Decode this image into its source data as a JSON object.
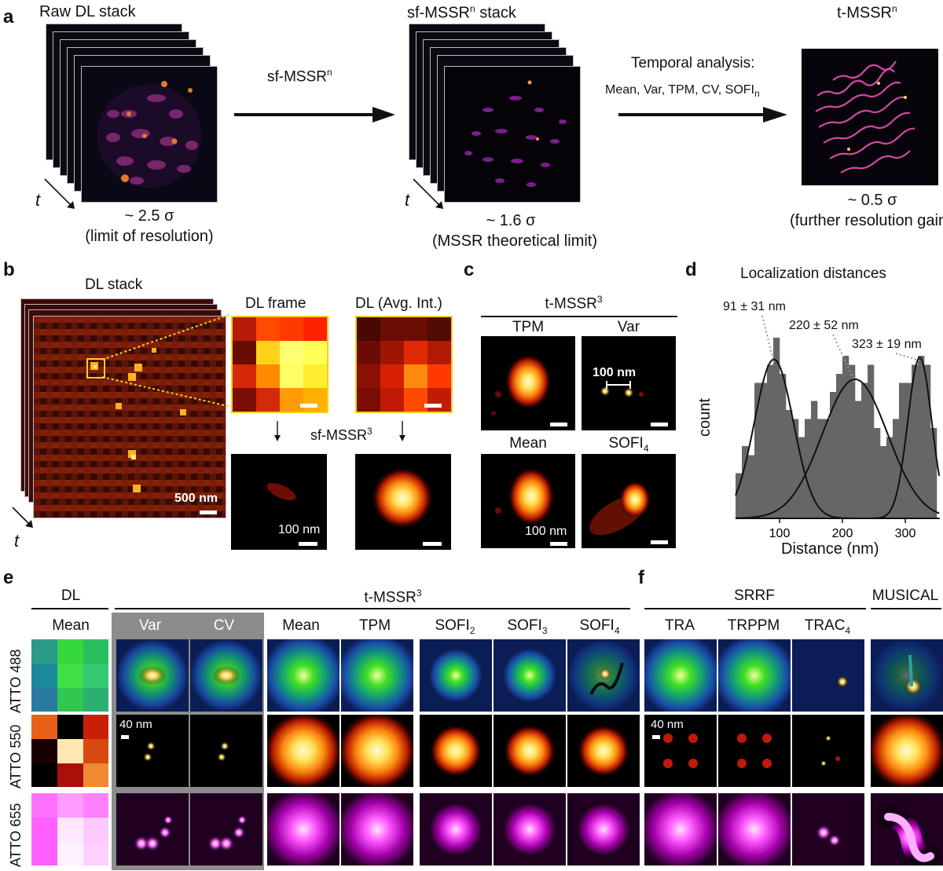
{
  "panel_a": {
    "letter": "a",
    "raw_title": "Raw DL stack",
    "raw_sigma": "~ 2.5 σ",
    "raw_note": "(limit of resolution)",
    "arrow1_label": "sf-MSSR",
    "arrow1_sup": "n",
    "sf_title": "sf-MSSR",
    "sf_title_sup": "n",
    "sf_title_tail": " stack",
    "sf_sigma": "~ 1.6 σ",
    "sf_note": "(MSSR theoretical limit)",
    "temporal_line1": "Temporal analysis:",
    "temporal_line2": "Mean, Var, TPM, CV, SOFI",
    "temporal_sub": "n",
    "t_title": "t-MSSR",
    "t_title_sup": "n",
    "t_sigma": "~ 0.5 σ",
    "t_note": "(further resolution gain)",
    "time_axis": "t"
  },
  "panel_b": {
    "letter": "b",
    "stack_title": "DL stack",
    "frame_title": "DL frame",
    "avg_title": "DL (Avg. Int.)",
    "process_label": "sf-MSSR",
    "process_sup": "3",
    "scale_large": "500 nm",
    "scale_small": "100 nm",
    "time_axis": "t"
  },
  "panel_c": {
    "letter": "c",
    "title": "t-MSSR",
    "title_sup": "3",
    "tiles": [
      "TPM",
      "Var",
      "Mean",
      "SOFI"
    ],
    "sofi_sub": "4",
    "scale_var": "100 nm",
    "scale_mean": "100 nm"
  },
  "panel_d": {
    "letter": "d",
    "title": "Localization distances",
    "ylabel": "count",
    "xlabel": "Distance (nm)",
    "annotations": [
      "91 ± 31 nm",
      "220 ± 52 nm",
      "323 ± 19 nm"
    ]
  },
  "chart_data": {
    "type": "bar",
    "title": "Localization distances",
    "xlabel": "Distance (nm)",
    "ylabel": "count",
    "xlim": [
      30,
      355
    ],
    "ylim": [
      0,
      10
    ],
    "x_ticks": [
      100,
      200,
      300
    ],
    "bin_width": 10,
    "bins": [
      35,
      45,
      55,
      65,
      75,
      85,
      95,
      105,
      115,
      125,
      135,
      145,
      155,
      165,
      175,
      185,
      195,
      205,
      215,
      225,
      235,
      245,
      255,
      265,
      275,
      285,
      295,
      305,
      315,
      325,
      335,
      345
    ],
    "counts": [
      2.5,
      4.0,
      3.5,
      7.5,
      7.5,
      8.5,
      10.0,
      8.0,
      6.0,
      5.5,
      4.5,
      5.5,
      6.5,
      5.5,
      5.5,
      7.0,
      8.0,
      9.0,
      8.5,
      6.5,
      7.5,
      8.5,
      5.0,
      4.0,
      4.5,
      5.5,
      7.5,
      7.5,
      8.5,
      9.0,
      8.5,
      5.0
    ],
    "fits": [
      {
        "name": "91 ± 31 nm",
        "mu": 91,
        "sigma": 31,
        "amp": 8.8
      },
      {
        "name": "220 ± 52 nm",
        "mu": 220,
        "sigma": 52,
        "amp": 7.7
      },
      {
        "name": "323 ± 19 nm",
        "mu": 323,
        "sigma": 19,
        "amp": 8.9
      }
    ]
  },
  "panel_e": {
    "letter": "e",
    "dl_header": "DL",
    "dl_col": "Mean",
    "tmssr_header": "t-MSSR",
    "tmssr_sup": "3",
    "cols": [
      "Var",
      "CV",
      "Mean",
      "TPM",
      "SOFI",
      "SOFI",
      "SOFI"
    ],
    "sofi_subs": [
      "2",
      "3",
      "4"
    ],
    "rows": [
      "ATTO 488",
      "ATTO 550",
      "ATTO 655"
    ],
    "scale_40": "40 nm"
  },
  "panel_f": {
    "letter": "f",
    "srrf_header": "SRRF",
    "cols": [
      "TRA",
      "TRPPM",
      "TRAC"
    ],
    "trac_sub": "4",
    "musical_header": "MUSICAL",
    "scale_40": "40 nm"
  },
  "colors": {
    "hot_bg": "#000000",
    "hist_bar": "#666666",
    "highlight_box": "#f2d21a",
    "var_cv_band": "#8c8c8c"
  }
}
